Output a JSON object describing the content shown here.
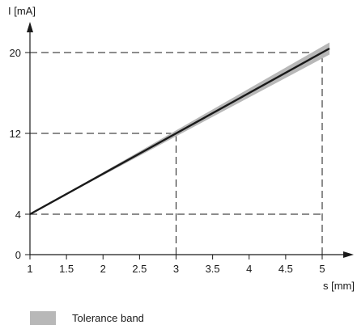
{
  "chart_data": {
    "type": "line",
    "title": "",
    "xlabel": "s [mm]",
    "ylabel": "I [mA]",
    "xlim": [
      1,
      5.1
    ],
    "ylim": [
      0,
      20.5
    ],
    "x_ticks": [
      1,
      1.5,
      2,
      2.5,
      3,
      3.5,
      4,
      4.5,
      5
    ],
    "x_tick_labels": [
      "1",
      "1.5",
      "2",
      "2.5",
      "3",
      "3.5",
      "4",
      "4.5",
      "5"
    ],
    "y_ticks": [
      0,
      4,
      12,
      20
    ],
    "y_tick_labels": [
      "0",
      "4",
      "12",
      "20"
    ],
    "grid": false,
    "series": [
      {
        "x": [
          1,
          5.1
        ],
        "y": [
          4,
          20.4
        ]
      }
    ],
    "tolerance_band": {
      "x": [
        1,
        5.1
      ],
      "half_width_mA": [
        0,
        0.6
      ]
    },
    "reference_lines": [
      {
        "x": 3,
        "y": 12
      },
      {
        "x": 5,
        "y": 20
      },
      {
        "x": 5,
        "y": 4
      }
    ],
    "legend": {
      "items": [
        {
          "label": "Tolerance band",
          "color": "#b8b8b8"
        }
      ],
      "position": "bottom-left"
    },
    "colors": {
      "line": "#1a1a1a",
      "band": "#b8b8b8",
      "axis": "#1a1a1a",
      "dash": "#1a1a1a"
    }
  }
}
